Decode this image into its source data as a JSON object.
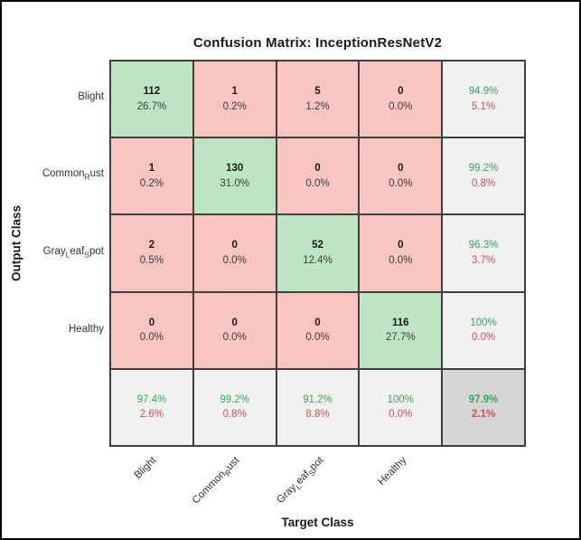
{
  "title": "Confusion Matrix: InceptionResNetV2",
  "axes": {
    "x_label": "Target Class",
    "y_label": "Output Class"
  },
  "colors": {
    "diagonal_cell": "#bee5c3",
    "off_diagonal_cell": "#f8c5c0",
    "summary_cell": "#f1f1f1",
    "overall_cell": "#d6d6d6",
    "correct_text": "#3aa55f",
    "error_text": "#d0524c",
    "grid_line": "#3f3f3f"
  },
  "chart_data": {
    "type": "heatmap",
    "title": "Confusion Matrix: InceptionResNetV2",
    "xlabel": "Target Class",
    "ylabel": "Output Class",
    "classes": [
      "Blight",
      "Common_Rust",
      "Gray_Leaf_Spot",
      "Healthy"
    ],
    "matrix_counts": [
      [
        112,
        1,
        5,
        0
      ],
      [
        1,
        130,
        0,
        0
      ],
      [
        2,
        0,
        52,
        0
      ],
      [
        0,
        0,
        0,
        116
      ]
    ],
    "matrix_percents": [
      [
        "26.7%",
        "0.2%",
        "1.2%",
        "0.0%"
      ],
      [
        "0.2%",
        "31.0%",
        "0.0%",
        "0.0%"
      ],
      [
        "0.5%",
        "0.0%",
        "12.4%",
        "0.0%"
      ],
      [
        "0.0%",
        "0.0%",
        "0.0%",
        "27.7%"
      ]
    ],
    "row_summary": [
      [
        "94.9%",
        "5.1%"
      ],
      [
        "99.2%",
        "0.8%"
      ],
      [
        "96.3%",
        "3.7%"
      ],
      [
        "100%",
        "0.0%"
      ]
    ],
    "col_summary": [
      [
        "97.4%",
        "2.6%"
      ],
      [
        "99.2%",
        "0.8%"
      ],
      [
        "91.2%",
        "8.8%"
      ],
      [
        "100%",
        "0.0%"
      ]
    ],
    "overall": [
      "97.9%",
      "2.1%"
    ],
    "legend_position": "none",
    "grid": "on"
  },
  "grid": [
    {
      "cells": [
        {
          "line1": "112",
          "line2": "26.7%"
        },
        {
          "line1": "1",
          "line2": "0.2%"
        },
        {
          "line1": "5",
          "line2": "1.2%"
        },
        {
          "line1": "0",
          "line2": "0.0%"
        },
        {
          "line1": "94.9%",
          "line2": "5.1%"
        }
      ]
    },
    {
      "cells": [
        {
          "line1": "1",
          "line2": "0.2%"
        },
        {
          "line1": "130",
          "line2": "31.0%"
        },
        {
          "line1": "0",
          "line2": "0.0%"
        },
        {
          "line1": "0",
          "line2": "0.0%"
        },
        {
          "line1": "99.2%",
          "line2": "0.8%"
        }
      ]
    },
    {
      "cells": [
        {
          "line1": "2",
          "line2": "0.5%"
        },
        {
          "line1": "0",
          "line2": "0.0%"
        },
        {
          "line1": "52",
          "line2": "12.4%"
        },
        {
          "line1": "0",
          "line2": "0.0%"
        },
        {
          "line1": "96.3%",
          "line2": "3.7%"
        }
      ]
    },
    {
      "cells": [
        {
          "line1": "0",
          "line2": "0.0%"
        },
        {
          "line1": "0",
          "line2": "0.0%"
        },
        {
          "line1": "0",
          "line2": "0.0%"
        },
        {
          "line1": "116",
          "line2": "27.7%"
        },
        {
          "line1": "100%",
          "line2": "0.0%"
        }
      ]
    },
    {
      "cells": [
        {
          "line1": "97.4%",
          "line2": "2.6%"
        },
        {
          "line1": "99.2%",
          "line2": "0.8%"
        },
        {
          "line1": "91.2%",
          "line2": "8.8%"
        },
        {
          "line1": "100%",
          "line2": "0.0%"
        },
        {
          "line1": "97.9%",
          "line2": "2.1%"
        }
      ]
    }
  ]
}
